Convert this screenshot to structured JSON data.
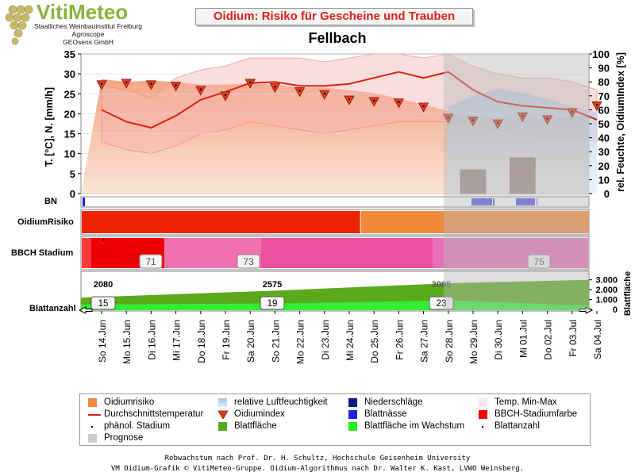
{
  "header": {
    "logo_title": "VitiMeteo",
    "logo_line1": "Staatliches Weinbauinstitut Freiburg",
    "logo_line2": "Agroscope",
    "logo_line3": "GEOsens GmbH",
    "chart_title": "Oidium: Risiko für Gescheine und Trauben",
    "station": "Fellbach"
  },
  "row_labels": {
    "bn": "BN",
    "risk": "OidiumRisiko",
    "bbch": "BBCH Stadium",
    "leaf_count": "Blattanzahl"
  },
  "colors": {
    "risk_orange": "#f08a3a",
    "avg_temp_line": "#e02010",
    "index_marker": "#e43a1c",
    "humidity": "#9fc3e6",
    "precip": "#0a1a80",
    "leaf_wetness": "#2020e0",
    "bbch_color": "#ff0000",
    "leaf_area": "#5aaa1c",
    "leaf_area_growth": "#33ee33",
    "prognosis": "#cccccc"
  },
  "legend": [
    {
      "label": "Oidiumrisiko",
      "icon": "orange-square"
    },
    {
      "label": "relative Luftfeuchtigkeit",
      "icon": "light-blue-gradient"
    },
    {
      "label": "Niederschläge",
      "icon": "dark-blue-square"
    },
    {
      "label": "Temp. Min-Max",
      "icon": "light-pink-square"
    },
    {
      "label": "Durchschnittstemperatur",
      "icon": "red-line"
    },
    {
      "label": "Oidiumindex",
      "icon": "red-triangle-down"
    },
    {
      "label": "Blattnässe",
      "icon": "blue-square"
    },
    {
      "label": "BBCH-Stadiumfarbe",
      "icon": "red-square"
    },
    {
      "label": "phänol. Stadium",
      "icon": "small-dot"
    },
    {
      "label": "Blattfläche",
      "icon": "green-square"
    },
    {
      "label": "Blattfläche im Wachstum",
      "icon": "bright-green-square"
    },
    {
      "label": "Blattanzahl",
      "icon": "small-dot"
    },
    {
      "label": "Prognose",
      "icon": "gray-square"
    }
  ],
  "footer": {
    "line1": "Rebwachstum nach Prof. Dr. H. Schultz, Hochschule Geisenheim University",
    "line2": "VM Oidium-Grafik © VitiMeteo-Gruppe. Oidium-Algorithmus nach Dr. Walter K. Kast, LVWO Weinsberg."
  },
  "chart_data": {
    "type": "line",
    "x": [
      "So 14.Jun",
      "Mo 15.Jun",
      "Di 16.Jun",
      "Mi 17.Jun",
      "Do 18.Jun",
      "Fr 19.Jun",
      "Sa 20.Jun",
      "So 21.Jun",
      "Mo 22.Jun",
      "Di 23.Jun",
      "Mi 24.Jun",
      "Do 25.Jun",
      "Fr 26.Jun",
      "Sa 27.Jun",
      "So 28.Jun",
      "Mo 29.Jun",
      "Di 30.Jun",
      "Mi 01.Jul",
      "Do 02.Jul",
      "Fr 03.Jul",
      "Sa 04.Jul"
    ],
    "ylabel_left": "T. [°C], N. [mm/h]",
    "ylabel_right": "rel. Feuchte, OidiumIndex [%]",
    "ylim_left": [
      0,
      35
    ],
    "yticks_left": [
      0,
      5,
      10,
      15,
      20,
      25,
      30,
      35
    ],
    "ylim_right": [
      0,
      100
    ],
    "yticks_right": [
      0,
      10,
      20,
      30,
      40,
      50,
      60,
      70,
      80,
      90,
      100
    ],
    "forecast_start": "So 28.Jun",
    "series": [
      {
        "name": "Durchschnittstemperatur",
        "unit": "°C",
        "values": [
          21.0,
          18.0,
          16.5,
          19.5,
          23.5,
          25.5,
          27.7,
          28.0,
          27.0,
          27.0,
          27.5,
          29.0,
          30.5,
          29.0,
          30.5,
          26.0,
          23.0,
          22.0,
          21.5,
          21.0,
          18.5
        ]
      },
      {
        "name": "Temp. Min",
        "unit": "°C",
        "values": [
          13,
          11,
          10,
          12,
          15,
          16,
          18,
          17,
          16,
          15,
          16,
          17,
          18,
          18,
          18,
          17,
          16,
          15,
          14,
          14,
          13
        ]
      },
      {
        "name": "Temp. Max",
        "unit": "°C",
        "values": [
          27,
          26,
          24,
          29,
          31,
          32,
          34,
          34,
          34,
          33,
          34,
          35,
          35,
          34,
          35,
          32,
          30,
          29,
          29,
          28,
          26
        ]
      },
      {
        "name": "Oidiumindex",
        "unit": "%",
        "values": [
          78,
          79,
          78,
          77,
          74,
          70,
          79,
          76,
          73,
          71,
          67,
          66,
          65,
          62,
          54,
          52,
          50,
          55,
          53,
          58,
          63
        ]
      },
      {
        "name": "Oidiumrisiko",
        "unit": "%",
        "values": [
          82,
          80,
          81,
          80,
          78,
          78,
          79,
          78,
          76,
          76,
          74,
          72,
          68,
          64,
          59,
          55,
          54,
          55,
          53,
          55,
          57
        ]
      },
      {
        "name": "relative Luftfeuchtigkeit",
        "unit": "%",
        "values": [
          60,
          58,
          62,
          55,
          50,
          48,
          52,
          55,
          53,
          52,
          54,
          56,
          57,
          58,
          62,
          70,
          75,
          72,
          68,
          62,
          58
        ]
      },
      {
        "name": "Niederschläge",
        "unit": "mm/h",
        "values": [
          0,
          0,
          0,
          0,
          0,
          0,
          0,
          0,
          0,
          0,
          0,
          0,
          0,
          0,
          0,
          6,
          0,
          9,
          0,
          0,
          0
        ]
      }
    ],
    "bbch": {
      "stages": [
        {
          "label": "71",
          "start": "So 14.Jun",
          "color": "red"
        },
        {
          "label": "73",
          "start": "Sa 20.Jun",
          "color": "pink"
        },
        {
          "label": "75",
          "start": "Mi 01.Jul",
          "color": "pink"
        }
      ]
    },
    "oidium_risk_band": [
      {
        "from": "So 14.Jun",
        "to": "Do 25.Jun",
        "level": "hoch"
      },
      {
        "from": "Do 25.Jun",
        "to": "Sa 04.Jul",
        "level": "mittel"
      }
    ],
    "leaf_area": {
      "ylabel": "Blattfläche",
      "yticks": [
        0,
        1000,
        2000,
        3000
      ],
      "ytick_labels": [
        "0",
        "1.000",
        "2.000",
        "3.000"
      ],
      "annotations": [
        {
          "x": "So 14.Jun",
          "value": 2080
        },
        {
          "x": "So 21.Jun",
          "value": 2575
        },
        {
          "x": "So 28.Jun",
          "value": 3085
        }
      ]
    },
    "leaf_count": [
      {
        "x": "So 14.Jun",
        "value": 15
      },
      {
        "x": "So 21.Jun",
        "value": 19
      },
      {
        "x": "So 28.Jun",
        "value": 23
      }
    ]
  }
}
